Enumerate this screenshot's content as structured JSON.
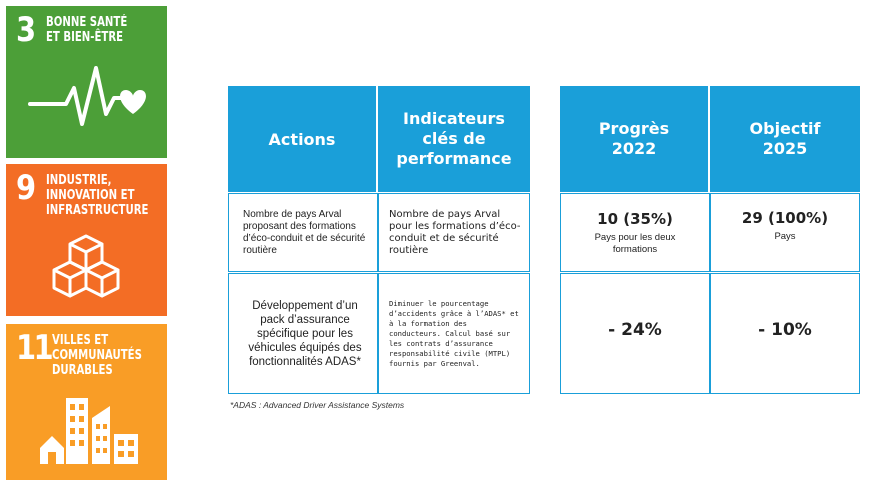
{
  "sdg": [
    {
      "number": "3",
      "title_line1": "BONNE SANTÉ",
      "title_line2": "ET BIEN-ÊTRE",
      "title_line3": "",
      "color": "#4c9f38",
      "icon": "heartbeat-icon"
    },
    {
      "number": "9",
      "title_line1": "INDUSTRIE,",
      "title_line2": "INNOVATION ET",
      "title_line3": "INFRASTRUCTURE",
      "color": "#f36d25",
      "icon": "cubes-icon"
    },
    {
      "number": "11",
      "title_line1": "VILLES ET",
      "title_line2": "COMMUNAUTÉS",
      "title_line3": "DURABLES",
      "color": "#f99d26",
      "icon": "city-buildings-icon"
    }
  ],
  "table": {
    "headers": {
      "actions": "Actions",
      "kpi_line1": "Indicateurs",
      "kpi_line2": "clés de",
      "kpi_line3": "performance",
      "progress_line1": "Progrès",
      "progress_line2": "2022",
      "objective_line1": "Objectif",
      "objective_line2": "2025"
    },
    "rows": [
      {
        "action": "Nombre de pays Arval proposant des formations d’éco-conduit et de sécurité routière",
        "kpi": "Nombre de pays Arval pour les formations d’éco-conduit et de sécurité routière",
        "progress_value": "10 (35%)",
        "progress_note": "Pays pour les deux formations",
        "objective_value": "29 (100%)",
        "objective_note": "Pays"
      },
      {
        "action": "Développement d’un pack d’assurance spécifique pour les véhicules équipés des fonctionnalités ADAS*",
        "kpi": "Diminuer le pourcentage d’accidents grâce à l’ADAS* et à la formation des conducteurs. Calcul basé sur les contrats d’assurance responsabilité civile (MTPL) fournis par Greenval.",
        "progress_value": "- 24%",
        "objective_value": "- 10%"
      }
    ]
  },
  "footnote": "*ADAS : Advanced Driver Assistance Systems",
  "colors": {
    "header_blue": "#1a9fd9"
  }
}
